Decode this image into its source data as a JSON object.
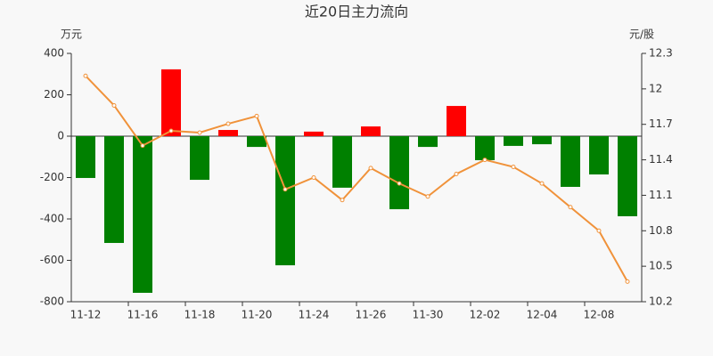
{
  "chart_data": {
    "type": "bar_line",
    "title": "近20日主力流向",
    "y_label": "万元",
    "y2_label": "元/股",
    "categories": [
      "11-12",
      null,
      "11-16",
      null,
      "11-18",
      null,
      "11-20",
      null,
      "11-24",
      null,
      "11-26",
      null,
      "11-30",
      null,
      "12-02",
      null,
      "12-04",
      null,
      "12-08",
      null
    ],
    "series": [
      {
        "type": "bar",
        "positive_color": "#ff0000",
        "negative_color": "#008000",
        "values": [
          -202,
          -516,
          -757,
          323,
          -211,
          30,
          -52,
          -624,
          22,
          -249,
          47,
          -353,
          -52,
          146,
          -116,
          -47,
          -39,
          -245,
          -185,
          -387
        ]
      },
      {
        "type": "line",
        "axis": "y2",
        "color": "#f0923a",
        "values": [
          12.11,
          11.86,
          11.52,
          11.645,
          11.63,
          11.705,
          11.77,
          11.15,
          11.25,
          11.06,
          11.33,
          11.2,
          11.09,
          11.28,
          11.4,
          11.34,
          11.2,
          11.0,
          10.8,
          10.37
        ]
      }
    ],
    "ylim": [
      -800,
      400
    ],
    "yticks": [
      -800,
      -600,
      -400,
      -200,
      0,
      200,
      400
    ],
    "y2lim": [
      10.2,
      12.3
    ],
    "y2ticks": [
      10.2,
      10.5,
      10.8,
      11.1,
      11.4,
      11.7,
      12,
      12.3
    ]
  }
}
